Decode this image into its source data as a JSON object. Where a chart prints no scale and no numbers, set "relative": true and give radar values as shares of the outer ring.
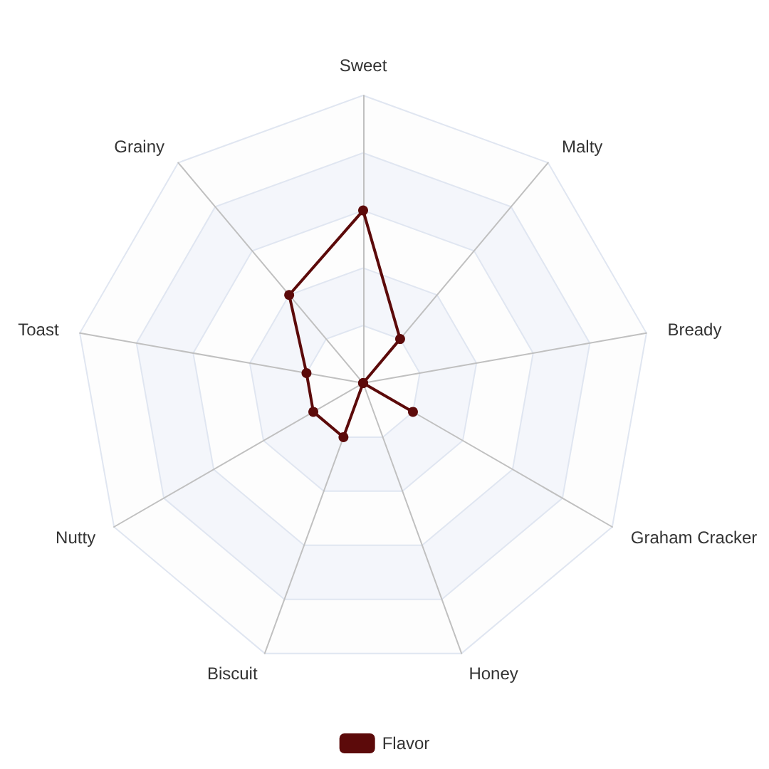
{
  "chart_data": {
    "type": "radar",
    "categories": [
      "Sweet",
      "Malty",
      "Bready",
      "Graham Cracker",
      "Honey",
      "Biscuit",
      "Nutty",
      "Toast",
      "Grainy"
    ],
    "series": [
      {
        "name": "Flavor",
        "color": "#5c0a0a",
        "values": [
          0.6,
          0.2,
          0,
          0.2,
          0,
          0.2,
          0.2,
          0.2,
          0.4
        ]
      }
    ],
    "relative": true,
    "grid": true,
    "legend": "bottom",
    "marker": "circle"
  }
}
